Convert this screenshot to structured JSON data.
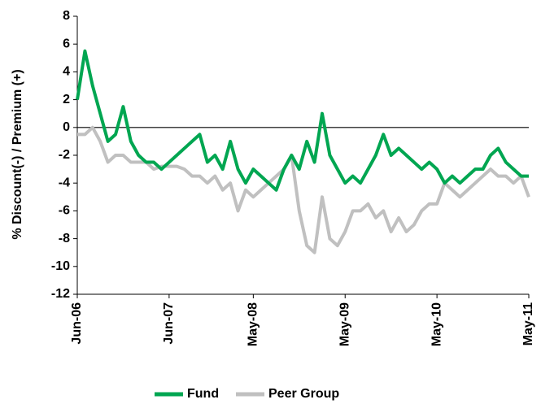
{
  "chart_data": {
    "type": "line",
    "y_label": "% Discount(-) / Premium (+)",
    "categories": [
      "Jun-06",
      null,
      null,
      null,
      null,
      null,
      null,
      null,
      null,
      null,
      null,
      null,
      "Jun-07",
      null,
      null,
      null,
      null,
      null,
      null,
      null,
      null,
      null,
      null,
      "May-08",
      null,
      null,
      null,
      null,
      null,
      null,
      null,
      null,
      null,
      null,
      null,
      "May-09",
      null,
      null,
      null,
      null,
      null,
      null,
      null,
      null,
      null,
      null,
      null,
      "May-10",
      null,
      null,
      null,
      null,
      null,
      null,
      null,
      null,
      null,
      null,
      null,
      "May-11"
    ],
    "series": [
      {
        "name": "Fund",
        "color": "#00a651",
        "values": [
          2,
          5.5,
          3,
          1,
          -1,
          -0.5,
          1.5,
          -1,
          -2,
          -2.5,
          -2.5,
          -3,
          -2.5,
          -2,
          -1.5,
          -1,
          -0.5,
          -2.5,
          -2,
          -3,
          -1,
          -3,
          -4,
          -3,
          -3.5,
          -4,
          -4.5,
          -3,
          -2,
          -3,
          -1,
          -2.5,
          1,
          -2,
          -3,
          -4,
          -3.5,
          -4,
          -3,
          -2,
          -0.5,
          -2,
          -1.5,
          -2,
          -2.5,
          -3,
          -2.5,
          -3,
          -4,
          -3.5,
          -4,
          -3.5,
          -3,
          -3,
          -2,
          -1.5,
          -2.5,
          -3,
          -3.5,
          -3.5
        ]
      },
      {
        "name": "Peer Group",
        "color": "#c0c0c0",
        "values": [
          -0.5,
          -0.5,
          0,
          -1,
          -2.5,
          -2,
          -2,
          -2.5,
          -2.5,
          -2.5,
          -3,
          -2.8,
          -2.8,
          -2.8,
          -3,
          -3.5,
          -3.5,
          -4,
          -3.5,
          -4.5,
          -4,
          -6,
          -4.5,
          -5,
          -4.5,
          -4,
          -3.5,
          -3,
          -2,
          -6,
          -8.5,
          -9,
          -5,
          -8,
          -8.5,
          -7.5,
          -6,
          -6,
          -5.5,
          -6.5,
          -6,
          -7.5,
          -6.5,
          -7.5,
          -7,
          -6,
          -5.5,
          -5.5,
          -4,
          -4.5,
          -5,
          -4.5,
          -4,
          -3.5,
          -3,
          -3.5,
          -3.5,
          -4,
          -3.5,
          -5
        ]
      }
    ],
    "ylim": [
      -12,
      8
    ],
    "yticks": [
      -12,
      -10,
      -8,
      -6,
      -4,
      -2,
      0,
      2,
      4,
      6,
      8
    ],
    "legend": "bottom"
  }
}
